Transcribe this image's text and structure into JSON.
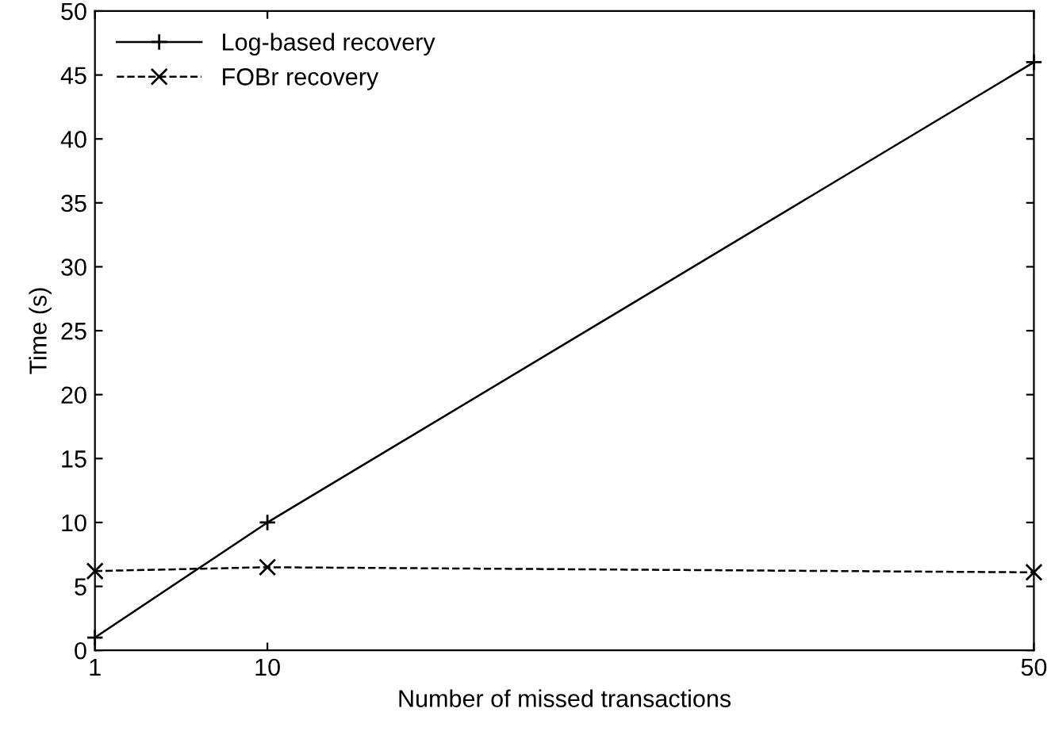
{
  "chart_data": {
    "type": "line",
    "xlabel": "Number of missed transactions",
    "ylabel": "Time (s)",
    "x": [
      1,
      10,
      50
    ],
    "series": [
      {
        "name": "Log-based recovery",
        "color": "#000000",
        "values": [
          1,
          10,
          46
        ],
        "marker": "plus",
        "line_style": "solid"
      },
      {
        "name": "FOBr recovery",
        "color": "#000000",
        "values": [
          6.2,
          6.5,
          6.1
        ],
        "marker": "cross",
        "line_style": "dashed"
      }
    ],
    "xlim": [
      1,
      50
    ],
    "xticks": [
      1,
      10,
      50
    ],
    "ylim": [
      0,
      50
    ],
    "yticks": [
      0,
      5,
      10,
      15,
      20,
      25,
      30,
      35,
      40,
      45,
      50
    ],
    "grid": false,
    "legend": "top left"
  }
}
